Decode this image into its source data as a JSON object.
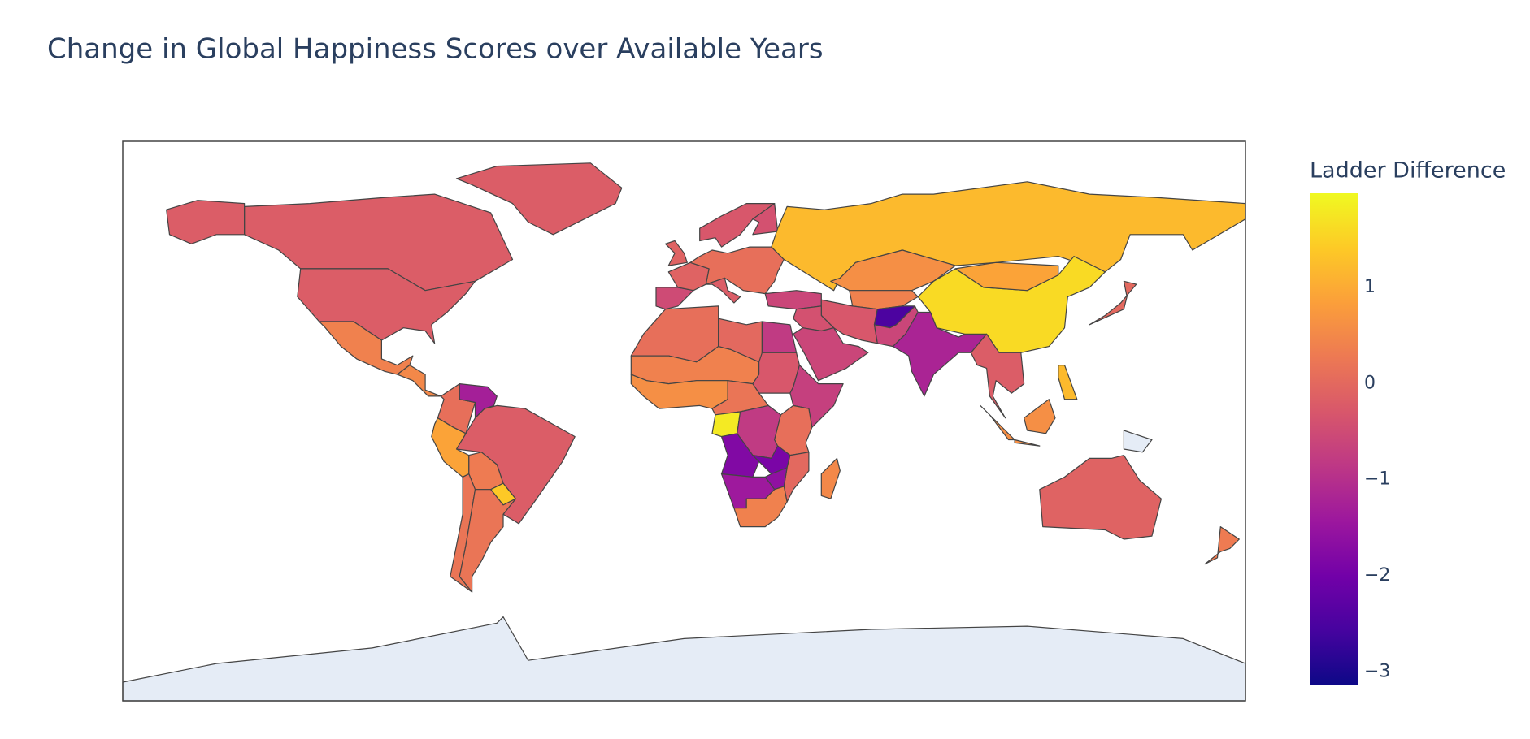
{
  "chart_data": {
    "type": "choropleth",
    "title": "Change in Global Happiness Scores over Available Years",
    "colorbar_title": "Ladder Difference",
    "values": [
      -0.2,
      -0.2,
      -0.2,
      0.4,
      0.5,
      0.1,
      -1.3,
      -0.2,
      0.9,
      0.3,
      1.4,
      0.2,
      0.2,
      -0.5,
      -0.1,
      0.1,
      -0.2,
      -0.1,
      -0.3,
      -0.4,
      1.2,
      -0.6,
      0.6,
      0.4,
      -0.3,
      -0.4,
      -0.6,
      -2.5,
      -0.6,
      -1.2,
      1.6,
      0.9,
      -0.2,
      0.0,
      0.6,
      1.2,
      -0.1,
      0.3,
      0.1,
      0.0,
      -0.8,
      0.4,
      0.6,
      -0.3,
      -0.7,
      0.2,
      1.8,
      -0.8,
      0.1,
      -1.8,
      -1.9,
      0.0,
      -1.6,
      -1.4,
      0.4,
      0.5
    ],
    "zlim": [
      -3.14,
      1.98
    ],
    "zticks": [
      {
        "value": -3,
        "label": "−3"
      },
      {
        "value": -2,
        "label": "−2"
      },
      {
        "value": -1,
        "label": "−1"
      },
      0,
      1
    ],
    "colorscale": [
      [
        0,
        "#0d0887"
      ],
      [
        0.111,
        "#46039f"
      ],
      [
        0.222,
        "#7201a8"
      ],
      [
        0.333,
        "#9c179e"
      ],
      [
        0.444,
        "#bd3786"
      ],
      [
        0.556,
        "#d8576b"
      ],
      [
        0.667,
        "#ed7953"
      ],
      [
        0.778,
        "#fb9f3a"
      ],
      [
        0.889,
        "#fdca26"
      ],
      [
        1,
        "#f0f921"
      ]
    ]
  }
}
